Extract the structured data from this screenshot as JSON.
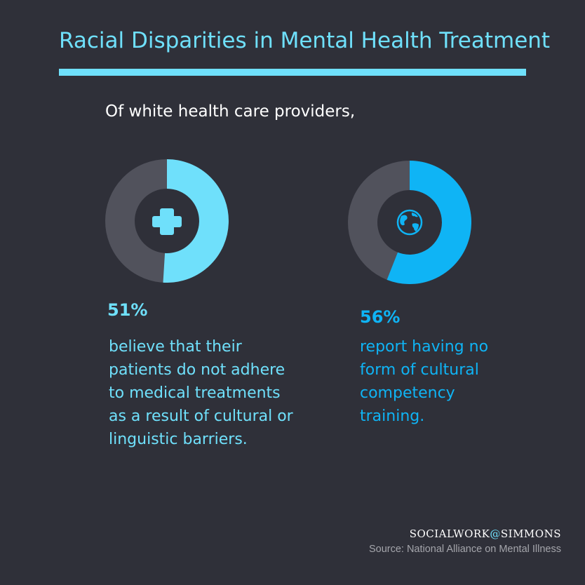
{
  "title": "Racial Disparities in Mental Health Treatment",
  "subtitle": "Of white health care providers,",
  "colors": {
    "background": "#2f3039",
    "accent_light": "#6fe0fb",
    "accent_blue": "#0fb4f5",
    "track": "#51525c"
  },
  "chart_data": [
    {
      "type": "pie",
      "values": [
        51,
        49
      ],
      "percent_label": "51%",
      "icon": "medical-cross-icon",
      "color": "#6fe0fb",
      "description_lines": [
        "believe that their",
        "patients do not adhere",
        "to medical treatments",
        "as a result of cultural or",
        "linguistic barriers."
      ]
    },
    {
      "type": "pie",
      "values": [
        56,
        44
      ],
      "percent_label": "56%",
      "icon": "globe-icon",
      "color": "#0fb4f5",
      "description_lines": [
        "report having no",
        "form of cultural",
        "competency",
        "training."
      ]
    }
  ],
  "footer": {
    "brand_left": "SOCIALWORK",
    "brand_at": "@",
    "brand_right": "SIMMONS",
    "source": "Source: National Alliance on Mental Illness"
  }
}
